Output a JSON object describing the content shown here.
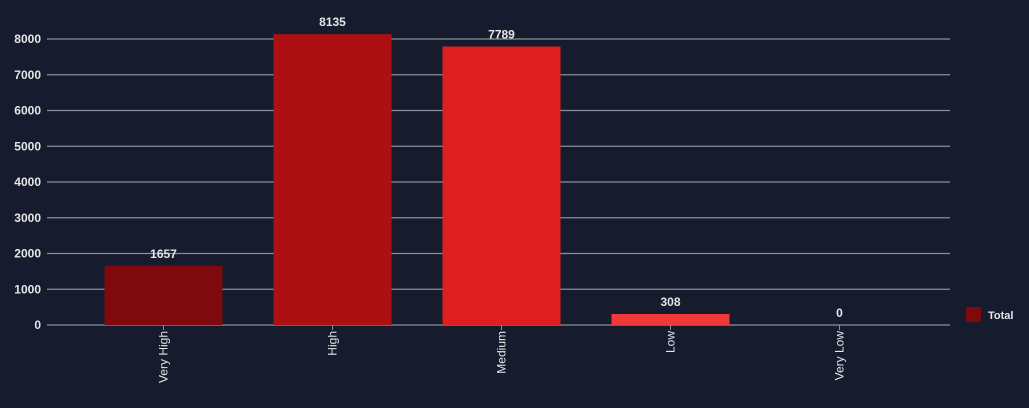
{
  "chart_data": {
    "type": "bar",
    "categories": [
      "Very High",
      "High",
      "Medium",
      "Low",
      "Very Low"
    ],
    "series": [
      {
        "name": "Total",
        "values": [
          1657,
          8135,
          7789,
          308,
          0
        ]
      }
    ],
    "bar_colors": [
      "#7f0a0e",
      "#ad1012",
      "#de1e1f",
      "#f2393a",
      "#f56b6b"
    ],
    "ylim": [
      0,
      8000
    ],
    "yticks": [
      0,
      1000,
      2000,
      3000,
      4000,
      5000,
      6000,
      7000,
      8000
    ],
    "grid": true,
    "legend_position": "right",
    "legend_color": "#7f0a0e",
    "background": "#161b2e",
    "gridline_color": "#8a8f99"
  }
}
